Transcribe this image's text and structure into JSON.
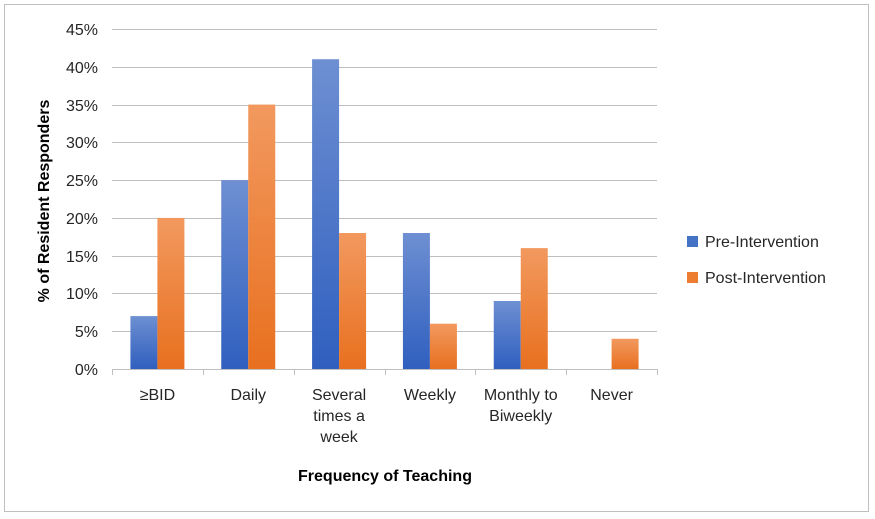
{
  "chart_data": {
    "type": "bar",
    "title": "",
    "xlabel": "Frequency of Teaching",
    "ylabel": "% of Resident Responders",
    "categories": [
      [
        "≥BID"
      ],
      [
        "Daily"
      ],
      [
        "Several",
        "times a",
        "week"
      ],
      [
        "Weekly"
      ],
      [
        "Monthly to",
        "Biweekly"
      ],
      [
        "Never"
      ]
    ],
    "series": [
      {
        "name": "Pre-Intervention",
        "color": "#4472C4",
        "values": [
          7,
          25,
          41,
          18,
          9,
          0
        ]
      },
      {
        "name": "Post-Intervention",
        "color": "#ED7D31",
        "values": [
          20,
          35,
          18,
          6,
          16,
          4
        ]
      }
    ],
    "ylim": [
      0,
      45
    ],
    "y_ticks": [
      0,
      5,
      10,
      15,
      20,
      25,
      30,
      35,
      40,
      45
    ],
    "y_tick_format": "percent",
    "grid": true,
    "legend_position": "right"
  }
}
